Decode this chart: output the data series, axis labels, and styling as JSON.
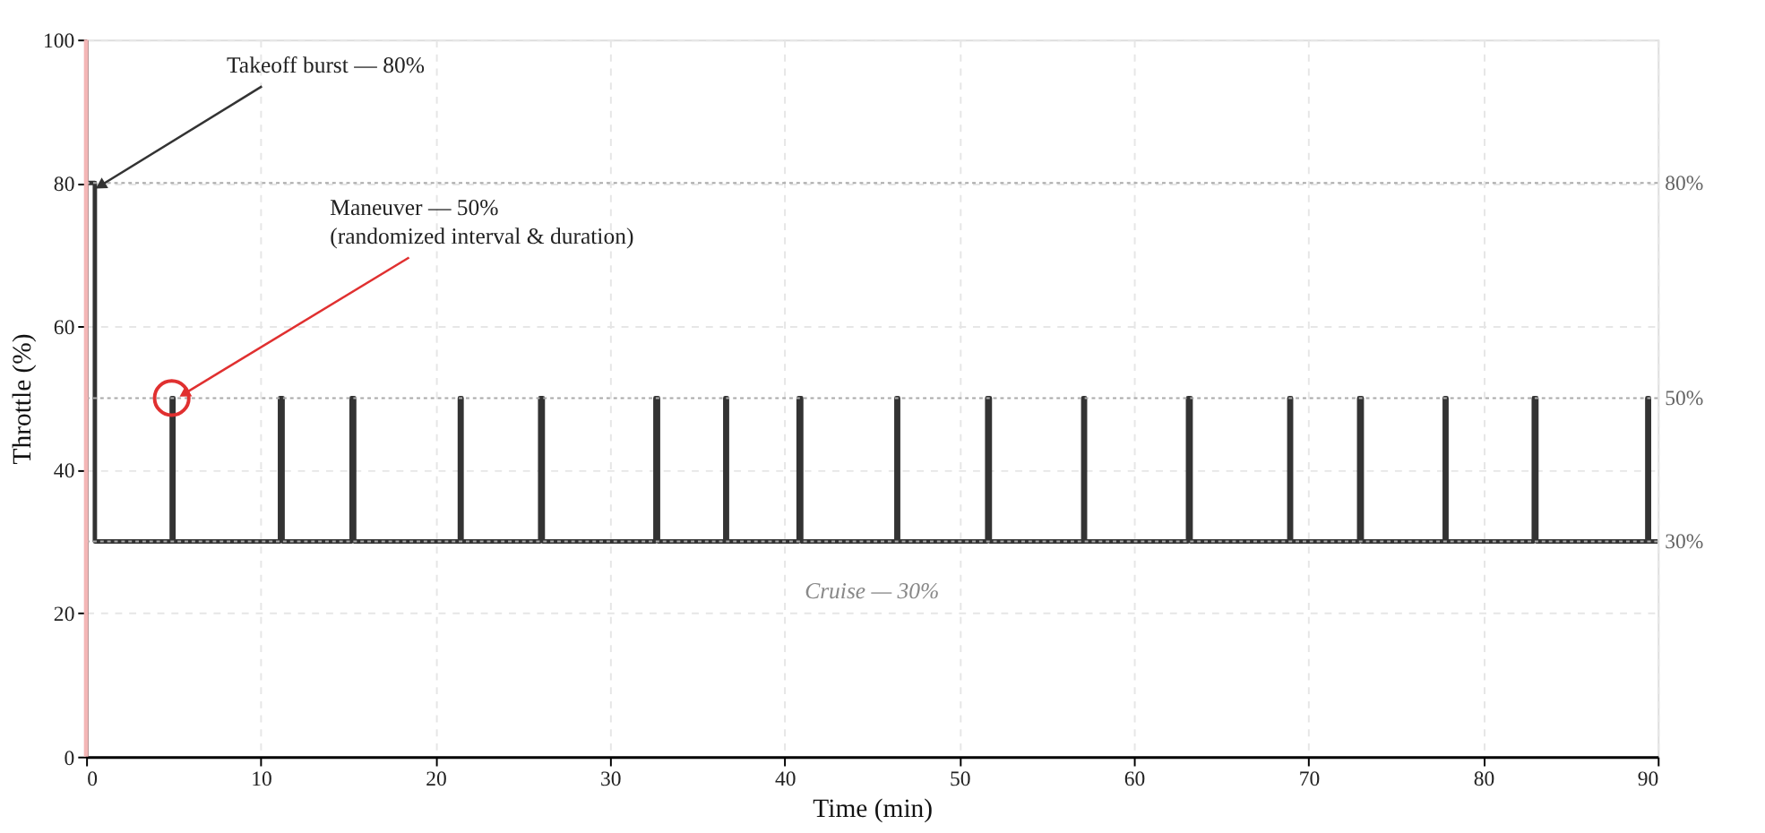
{
  "chart_data": {
    "type": "step",
    "xlabel": "Time (min)",
    "ylabel": "Throttle (%)",
    "xlim": [
      0,
      90
    ],
    "xticks": [
      0,
      10,
      20,
      30,
      40,
      50,
      60,
      70,
      80,
      90
    ],
    "ylim": [
      0,
      100
    ],
    "yticks": [
      0,
      20,
      40,
      60,
      80,
      100
    ],
    "grid": true,
    "line_style": "solid",
    "marker": "none",
    "series": [
      {
        "color": "#333333",
        "x": [
          0,
          0.5,
          4.9,
          5.0,
          11.1,
          11.25,
          15.2,
          15.35,
          21.4,
          21.5,
          26.0,
          26.15,
          32.6,
          32.75,
          36.6,
          36.7,
          40.8,
          40.95,
          46.4,
          46.5,
          51.6,
          51.75,
          57.1,
          57.2,
          63.1,
          63.25,
          68.9,
          69.0,
          72.9,
          73.05,
          77.8,
          77.9,
          82.9,
          83.05,
          89.4,
          89.5,
          90
        ],
        "values": [
          80,
          30,
          50,
          30,
          50,
          30,
          50,
          30,
          50,
          30,
          50,
          30,
          50,
          30,
          50,
          30,
          50,
          30,
          50,
          30,
          50,
          30,
          50,
          30,
          50,
          30,
          50,
          30,
          50,
          30,
          50,
          30,
          50,
          30,
          50,
          30,
          30
        ]
      }
    ],
    "ref_lines": [
      {
        "axis": "y",
        "value": 80,
        "label": "80%",
        "color": "#aaaaaa",
        "line_style": "dotted"
      },
      {
        "axis": "y",
        "value": 50,
        "label": "50%",
        "color": "#aaaaaa",
        "line_style": "dotted"
      },
      {
        "axis": "y",
        "value": 30,
        "label": "30%",
        "color": "#aaaaaa",
        "line_style": "dotted"
      },
      {
        "axis": "x",
        "value": 0,
        "label": null,
        "color": "#f4b6b6",
        "line_style": "solid"
      }
    ],
    "annotations": [
      {
        "text": "Takeoff burst — 80%",
        "x": 0.5,
        "y": 80
      },
      {
        "text": "Maneuver — 50%\n(randomized interval & duration)",
        "x": 4.9,
        "y": 50
      },
      "Cruise — 30%"
    ]
  }
}
